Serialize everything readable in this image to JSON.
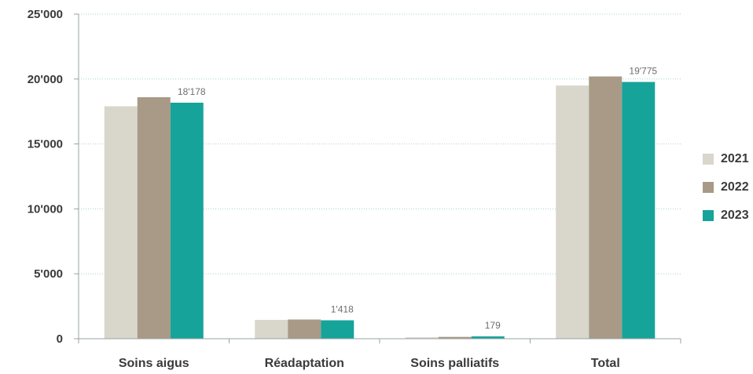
{
  "chart_data": {
    "type": "bar",
    "title": "",
    "xlabel": "",
    "ylabel": "",
    "categories": [
      "Soins aigus",
      "Réadaptation",
      "Soins palliatifs",
      "Total"
    ],
    "series": [
      {
        "name": "2021",
        "color": "#d9d6cb",
        "values": [
          17900,
          1450,
          110,
          19500
        ]
      },
      {
        "name": "2022",
        "color": "#a89a86",
        "values": [
          18600,
          1480,
          140,
          20200
        ]
      },
      {
        "name": "2023",
        "color": "#16a39a",
        "values": [
          18178,
          1418,
          179,
          19775
        ]
      }
    ],
    "data_labels": [
      {
        "category": 0,
        "series": 2,
        "text": "18'178"
      },
      {
        "category": 1,
        "series": 2,
        "text": "1'418"
      },
      {
        "category": 2,
        "series": 2,
        "text": "179"
      },
      {
        "category": 3,
        "series": 2,
        "text": "19'775"
      }
    ],
    "ylim": [
      0,
      25000
    ],
    "yticks": [
      0,
      5000,
      10000,
      15000,
      20000,
      25000
    ],
    "ytick_labels": [
      "0",
      "5'000",
      "10'000",
      "15'000",
      "20'000",
      "25'000"
    ],
    "grid": true,
    "grid_color": "#a9d3d3",
    "legend_position": "right"
  }
}
